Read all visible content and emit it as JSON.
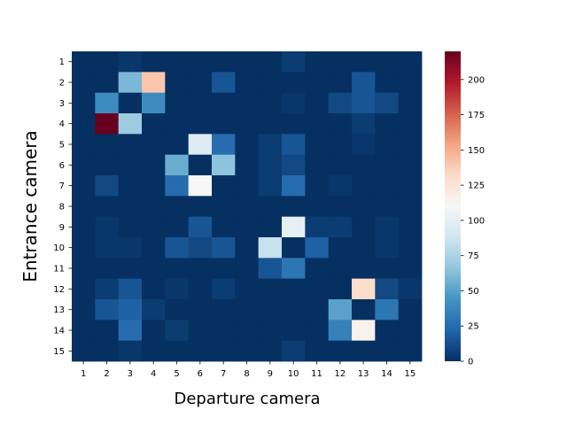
{
  "chart_data": {
    "type": "heatmap",
    "title": "",
    "xlabel": "Departure camera",
    "ylabel": "Entrance camera",
    "x_categories": [
      "1",
      "2",
      "3",
      "4",
      "5",
      "6",
      "7",
      "8",
      "9",
      "10",
      "11",
      "12",
      "13",
      "14",
      "15"
    ],
    "y_categories": [
      "1",
      "2",
      "3",
      "4",
      "5",
      "6",
      "7",
      "8",
      "9",
      "10",
      "11",
      "12",
      "13",
      "14",
      "15"
    ],
    "colorbar": {
      "min": 0,
      "max": 220,
      "ticks": [
        "0",
        "25",
        "50",
        "75",
        "100",
        "125",
        "150",
        "175",
        "200"
      ],
      "colormap": "RdBu_r"
    },
    "values": [
      [
        0,
        0,
        3,
        0,
        0,
        0,
        0,
        0,
        0,
        5,
        0,
        0,
        0,
        0,
        0
      ],
      [
        0,
        0,
        60,
        140,
        0,
        0,
        15,
        0,
        0,
        0,
        0,
        0,
        15,
        0,
        0
      ],
      [
        0,
        40,
        0,
        40,
        0,
        0,
        0,
        0,
        0,
        3,
        0,
        10,
        15,
        10,
        0
      ],
      [
        0,
        220,
        70,
        0,
        0,
        0,
        0,
        0,
        0,
        0,
        0,
        0,
        5,
        0,
        0
      ],
      [
        0,
        0,
        0,
        0,
        0,
        95,
        25,
        0,
        5,
        15,
        0,
        0,
        3,
        0,
        0
      ],
      [
        0,
        0,
        0,
        0,
        55,
        0,
        65,
        0,
        5,
        10,
        0,
        0,
        0,
        0,
        0
      ],
      [
        0,
        10,
        0,
        0,
        25,
        110,
        0,
        0,
        5,
        25,
        0,
        3,
        0,
        0,
        0
      ],
      [
        0,
        0,
        0,
        0,
        0,
        0,
        0,
        0,
        0,
        0,
        0,
        0,
        0,
        0,
        0
      ],
      [
        0,
        3,
        0,
        0,
        0,
        15,
        0,
        0,
        0,
        100,
        5,
        5,
        0,
        3,
        0
      ],
      [
        0,
        3,
        3,
        0,
        15,
        10,
        15,
        0,
        85,
        0,
        20,
        0,
        0,
        3,
        0
      ],
      [
        0,
        0,
        0,
        0,
        0,
        0,
        0,
        0,
        15,
        30,
        0,
        0,
        0,
        0,
        0
      ],
      [
        0,
        5,
        15,
        0,
        3,
        0,
        5,
        0,
        0,
        0,
        0,
        0,
        130,
        10,
        3
      ],
      [
        0,
        15,
        20,
        5,
        0,
        0,
        0,
        0,
        0,
        0,
        0,
        50,
        0,
        30,
        0
      ],
      [
        0,
        0,
        25,
        0,
        5,
        0,
        0,
        0,
        0,
        0,
        0,
        35,
        115,
        0,
        0
      ],
      [
        0,
        0,
        3,
        0,
        0,
        0,
        0,
        0,
        0,
        5,
        0,
        0,
        0,
        0,
        0
      ]
    ]
  }
}
